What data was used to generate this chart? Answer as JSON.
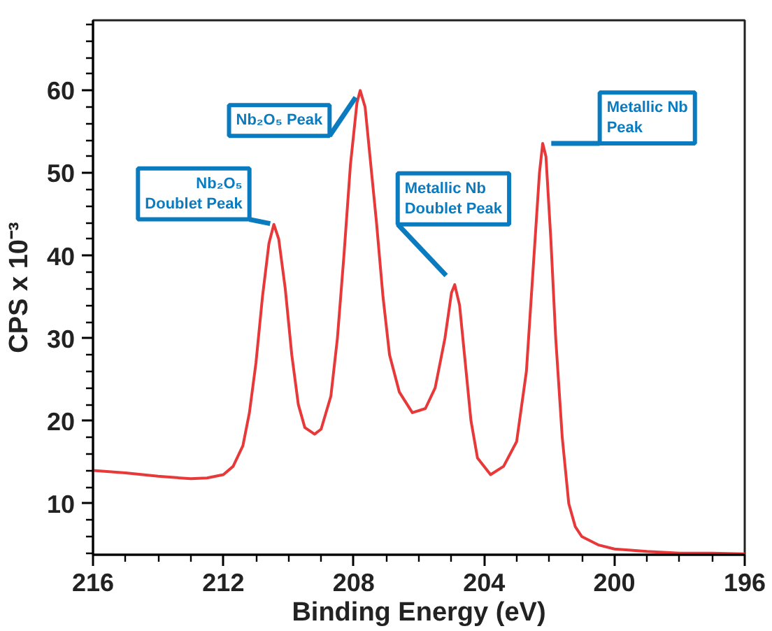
{
  "chart_data": {
    "type": "line",
    "xlabel": "Binding Energy (eV)",
    "ylabel": "CPS x 10⁻³",
    "xlim": [
      216,
      196
    ],
    "ylim": [
      3.8,
      68.5
    ],
    "xticks": [
      216,
      {
        "value": 215,
        "label": null
      },
      {
        "value": 214,
        "label": null
      },
      {
        "value": 213,
        "label": null
      },
      212,
      {
        "value": 211,
        "label": null
      },
      {
        "value": 210,
        "label": null
      },
      {
        "value": 209,
        "label": null
      },
      208,
      {
        "value": 207,
        "label": null
      },
      {
        "value": 206,
        "label": null
      },
      {
        "value": 205,
        "label": null
      },
      204,
      {
        "value": 203,
        "label": null
      },
      {
        "value": 202,
        "label": null
      },
      {
        "value": 201,
        "label": null
      },
      200,
      {
        "value": 199,
        "label": null
      },
      {
        "value": 198,
        "label": null
      },
      {
        "value": 197,
        "label": null
      },
      196
    ],
    "yticks": [
      {
        "value": 4,
        "label": null
      },
      {
        "value": 6,
        "label": null
      },
      {
        "value": 8,
        "label": null
      },
      10,
      {
        "value": 12,
        "label": null
      },
      {
        "value": 14,
        "label": null
      },
      {
        "value": 16,
        "label": null
      },
      {
        "value": 18,
        "label": null
      },
      20,
      {
        "value": 22,
        "label": null
      },
      {
        "value": 24,
        "label": null
      },
      {
        "value": 26,
        "label": null
      },
      {
        "value": 28,
        "label": null
      },
      30,
      {
        "value": 32,
        "label": null
      },
      {
        "value": 34,
        "label": null
      },
      {
        "value": 36,
        "label": null
      },
      {
        "value": 38,
        "label": null
      },
      40,
      {
        "value": 42,
        "label": null
      },
      {
        "value": 44,
        "label": null
      },
      {
        "value": 46,
        "label": null
      },
      {
        "value": 48,
        "label": null
      },
      50,
      {
        "value": 52,
        "label": null
      },
      {
        "value": 54,
        "label": null
      },
      {
        "value": 56,
        "label": null
      },
      {
        "value": 58,
        "label": null
      },
      60,
      {
        "value": 62,
        "label": null
      },
      {
        "value": 64,
        "label": null
      },
      {
        "value": 66,
        "label": null
      },
      {
        "value": 68,
        "label": null
      }
    ],
    "series": [
      {
        "color": "#e8393a",
        "x": [
          216,
          215,
          214,
          213,
          212.5,
          212,
          211.7,
          211.4,
          211.2,
          211.0,
          210.8,
          210.6,
          210.45,
          210.3,
          210.1,
          209.9,
          209.7,
          209.5,
          209.2,
          209.0,
          208.7,
          208.5,
          208.3,
          208.1,
          207.9,
          207.8,
          207.65,
          207.5,
          207.3,
          207.1,
          206.9,
          206.6,
          206.2,
          205.8,
          205.5,
          205.2,
          205.0,
          204.9,
          204.75,
          204.6,
          204.4,
          204.2,
          203.8,
          203.4,
          203.0,
          202.7,
          202.5,
          202.3,
          202.2,
          202.1,
          201.95,
          201.8,
          201.6,
          201.4,
          201.2,
          201.0,
          200.5,
          200,
          199,
          198,
          197,
          196
        ],
        "values": [
          14.0,
          13.7,
          13.3,
          13.0,
          13.1,
          13.5,
          14.5,
          17,
          21,
          27,
          35,
          41.5,
          43.8,
          42,
          36,
          28,
          22,
          19.2,
          18.4,
          19,
          23,
          30,
          40,
          51,
          58.5,
          60,
          58,
          52,
          44,
          35,
          28,
          23.5,
          21.0,
          21.5,
          24,
          30,
          35.5,
          36.5,
          34,
          28,
          20,
          15.5,
          13.5,
          14.5,
          17.5,
          26,
          38,
          50,
          53.6,
          52,
          42,
          30,
          18,
          10,
          7.2,
          6.0,
          5.0,
          4.5,
          4.2,
          4.0,
          4.0,
          3.9
        ]
      }
    ],
    "annotations": [
      {
        "text": "Nb₂O₅\nDoublet Peak",
        "x": 210.45,
        "y": 43.8
      },
      {
        "text": "Nb₂O₅ Peak",
        "x": 207.8,
        "y": 60
      },
      {
        "text": "Metallic Nb\nDoublet Peak",
        "x": 204.9,
        "y": 36.5
      },
      {
        "text": "Metallic Nb\nPeak",
        "x": 202.2,
        "y": 53.6
      }
    ]
  }
}
